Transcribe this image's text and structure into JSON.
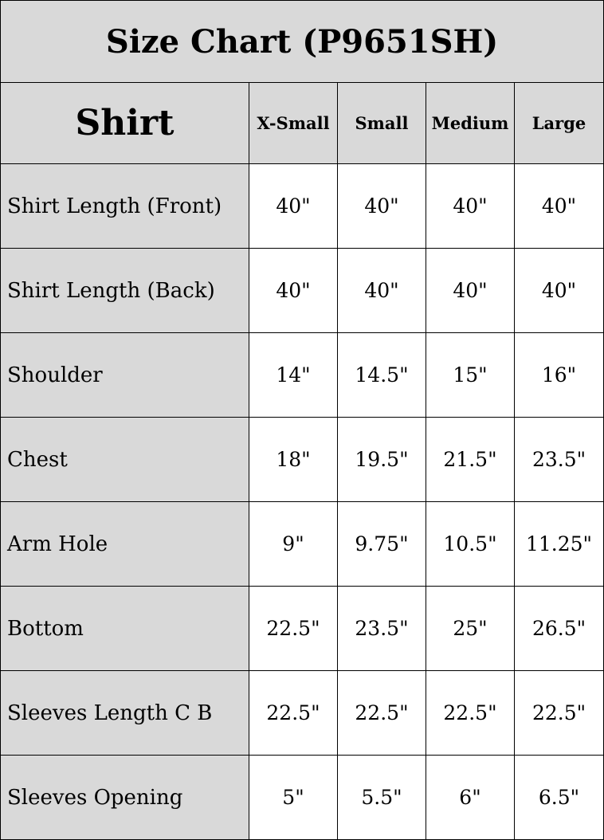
{
  "title": "Size Chart (P9651SH)",
  "header": {
    "category": "Shirt",
    "sizes": [
      "X-Small",
      "Small",
      "Medium",
      "Large"
    ]
  },
  "rows": [
    {
      "label": "Shirt Length (Front)",
      "values": [
        "40\"",
        "40\"",
        "40\"",
        "40\""
      ]
    },
    {
      "label": "Shirt Length (Back)",
      "values": [
        "40\"",
        "40\"",
        "40\"",
        "40\""
      ]
    },
    {
      "label": "Shoulder",
      "values": [
        "14\"",
        "14.5\"",
        "15\"",
        "16\""
      ]
    },
    {
      "label": "Chest",
      "values": [
        "18\"",
        "19.5\"",
        "21.5\"",
        "23.5\""
      ]
    },
    {
      "label": "Arm Hole",
      "values": [
        "9\"",
        "9.75\"",
        "10.5\"",
        "11.25\""
      ]
    },
    {
      "label": "Bottom",
      "values": [
        "22.5\"",
        "23.5\"",
        "25\"",
        "26.5\""
      ]
    },
    {
      "label": "Sleeves Length C B",
      "values": [
        "22.5\"",
        "22.5\"",
        "22.5\"",
        "22.5\""
      ]
    },
    {
      "label": "Sleeves Opening",
      "values": [
        "5\"",
        "5.5\"",
        "6\"",
        "6.5\""
      ]
    }
  ],
  "colors": {
    "header_bg": "#d9d9d9",
    "cell_bg": "#ffffff",
    "border": "#000000"
  }
}
